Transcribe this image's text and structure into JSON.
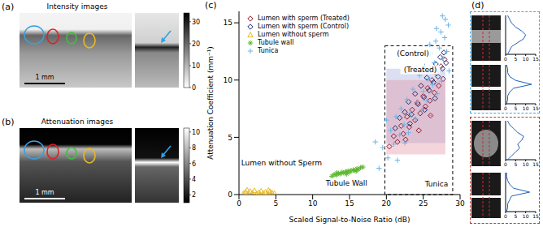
{
  "panel_labels": [
    "(a)",
    "(b)",
    "(c)",
    "(d)"
  ],
  "panel_a": {
    "title": "Intensity images",
    "scale_bar": "1 mm",
    "colorbar": {
      "range": [
        0,
        34
      ],
      "ticks": [
        0,
        10,
        20,
        30
      ]
    }
  },
  "panel_b": {
    "title": "Attenuation images",
    "scale_bar": "1 mm",
    "colorbar": {
      "range": [
        1,
        10.5
      ],
      "ticks": [
        2,
        4,
        6,
        8,
        10
      ]
    }
  },
  "chart_data": [
    {
      "type": "scatter",
      "x_label": "Scaled Signal-to-Noise Ratio (dB)",
      "y_label": "Attenuation Coefficient (mm⁻¹)",
      "xlim": [
        0,
        30
      ],
      "xticks": [
        0,
        5,
        10,
        15,
        20,
        25,
        30
      ],
      "ylim": [
        0,
        16
      ],
      "yticks": [
        0,
        5,
        10,
        15
      ],
      "legend": "upper left",
      "regions": [
        {
          "x": [
            20,
            28
          ],
          "y": [
            4.5,
            11
          ],
          "color": "#9aa3d9"
        },
        {
          "x": [
            20,
            28
          ],
          "y": [
            3.5,
            10
          ],
          "color": "#e3889a"
        }
      ],
      "box": {
        "x": [
          19.8,
          29
        ],
        "y": [
          0,
          13
        ],
        "line_style": "dashed"
      },
      "annotations": [
        {
          "text": "(Control)",
          "x": 23.6,
          "y": 12.3
        },
        {
          "text": "(Treated)",
          "x": 24.6,
          "y": 10.9
        },
        {
          "text": "Lumen without Sperm",
          "x": 0.3,
          "y": 2.8
        },
        {
          "text": "Tubule Wall",
          "x": 14.6,
          "y": 1.0
        },
        {
          "text": "Tunica",
          "x": 26.8,
          "y": 0.9
        }
      ],
      "series": [
        {
          "name": "Lumen with sperm (Treated)",
          "color": "#8b1a2b",
          "marker": "diamond",
          "x": [
            20.4,
            21,
            21.5,
            22,
            22.3,
            22.8,
            23.1,
            23.5,
            23.9,
            24.2,
            24.6,
            25,
            25.3,
            25.6,
            25.9,
            26.2,
            26.5,
            26.8,
            27.1,
            27.4,
            27.7,
            27.9,
            24.4,
            26,
            22.6
          ],
          "values": [
            4.2,
            5.1,
            4.6,
            6.0,
            5.3,
            6.8,
            5.9,
            7.4,
            6.5,
            8.0,
            7.1,
            8.6,
            7.7,
            9.3,
            8.2,
            10.0,
            8.9,
            10.6,
            9.5,
            11.2,
            10.1,
            11.8,
            5.6,
            6.9,
            4.8
          ]
        },
        {
          "name": "Lumen with sperm (Control)",
          "color": "#1f2a6b",
          "marker": "diamond",
          "x": [
            21.2,
            21.8,
            22.5,
            23,
            23.4,
            23.9,
            24.3,
            24.7,
            25.1,
            25.5,
            25.8,
            26.1,
            26.4,
            26.7,
            27,
            27.3,
            27.6,
            27.8,
            23.2,
            25.2,
            26.6,
            28.1
          ],
          "values": [
            5.8,
            6.7,
            7.2,
            8.1,
            7.0,
            8.8,
            7.9,
            9.5,
            8.5,
            10.2,
            9.1,
            10.9,
            9.8,
            11.4,
            10.3,
            12.0,
            11.0,
            12.4,
            6.2,
            7.4,
            8.4,
            11.5
          ]
        },
        {
          "name": "Lumen without sperm",
          "color": "#e8b923",
          "marker": "triangle",
          "x": [
            0.6,
            0.9,
            1.2,
            1.5,
            1.8,
            2.1,
            2.4,
            2.7,
            3.0,
            3.3,
            3.6,
            3.9,
            4.2,
            4.5,
            4.8,
            1.1,
            2.9,
            4.0
          ],
          "values": [
            0.1,
            0.25,
            0.05,
            0.3,
            0.15,
            0.35,
            0.08,
            0.2,
            0.3,
            0.12,
            0.22,
            0.05,
            0.28,
            0.15,
            0.1,
            0.4,
            0.02,
            0.38
          ]
        },
        {
          "name": "Tubule wall",
          "color": "#5cb82e",
          "marker": "asterisk",
          "x": [
            12.6,
            12.9,
            13.2,
            13.5,
            13.7,
            14,
            14.2,
            14.5,
            14.8,
            15,
            15.2,
            15.5,
            15.7,
            16,
            16.2,
            16.5,
            16.8,
            13.3,
            14.6,
            15.9
          ],
          "values": [
            1.6,
            1.75,
            1.7,
            1.85,
            1.8,
            1.95,
            1.9,
            2.0,
            2.05,
            1.95,
            2.1,
            2.15,
            2.1,
            2.25,
            2.2,
            2.35,
            2.4,
            1.9,
            1.8,
            2.05
          ]
        },
        {
          "name": "Tunica",
          "color": "#6cb4e8",
          "marker": "plus",
          "x": [
            19,
            19.5,
            20.2,
            20.6,
            21,
            21.3,
            21.8,
            22,
            22.4,
            22.8,
            23,
            23.3,
            23.6,
            24,
            24.2,
            24.5,
            24.8,
            25,
            25.2,
            25.5,
            25.7,
            26,
            26.1,
            26.3,
            26.5,
            26.7,
            26.9,
            27,
            27.2,
            27.4,
            27.5,
            27.7,
            27.9,
            28,
            28.2,
            28.4,
            27.6,
            26.8,
            25.9,
            22.5,
            21.5,
            20,
            18.5,
            23.8,
            28.5
          ],
          "values": [
            2.3,
            4.1,
            3.2,
            5.6,
            4.4,
            6.8,
            5.2,
            7.5,
            6.1,
            8.3,
            5.4,
            7.1,
            9.2,
            6.6,
            8.1,
            10.4,
            7.4,
            9.0,
            11.2,
            8.2,
            10.1,
            12.3,
            6.9,
            9.6,
            11.5,
            13.4,
            8.8,
            10.7,
            12.8,
            14.2,
            9.9,
            11.9,
            13.7,
            15.3,
            12.5,
            14.8,
            15.6,
            14.5,
            13.1,
            4.5,
            3.0,
            6.5,
            4.6,
            11.0,
            10.8
          ]
        }
      ]
    },
    {
      "type": "line",
      "xlim": [
        0,
        15
      ],
      "xticks": [
        0,
        5,
        10,
        15
      ],
      "ylim": [
        0,
        10
      ],
      "tick_labels": "x",
      "color": "#1f5fbf",
      "x": [
        1,
        2,
        3,
        6,
        9,
        10,
        8,
        5,
        3,
        2,
        1
      ],
      "values": [
        0,
        1,
        2,
        3,
        4,
        5,
        6,
        7,
        8,
        9,
        10
      ]
    },
    {
      "type": "line",
      "xlim": [
        0,
        15
      ],
      "xticks": [
        0,
        5,
        10,
        15
      ],
      "ylim": [
        0,
        10
      ],
      "tick_labels": "x",
      "color": "#1f5fbf",
      "x": [
        0.5,
        1,
        1,
        2,
        4,
        13,
        5,
        2,
        1,
        1,
        0.5
      ],
      "values": [
        0,
        1,
        2,
        3,
        4,
        5,
        6,
        7,
        8,
        9,
        10
      ]
    },
    {
      "type": "line",
      "xlim": [
        0,
        15
      ],
      "xticks": [
        0,
        5,
        10,
        15
      ],
      "ylim": [
        0,
        10
      ],
      "tick_labels": "x",
      "color": "#1f5fbf",
      "x": [
        1,
        3,
        5,
        7,
        6,
        8,
        9,
        6,
        4,
        2,
        1
      ],
      "values": [
        0,
        1,
        2,
        3,
        4,
        5,
        6,
        7,
        8,
        9,
        10
      ]
    },
    {
      "type": "line",
      "xlim": [
        0,
        15
      ],
      "xticks": [
        0,
        5,
        10,
        15
      ],
      "ylim": [
        0,
        10
      ],
      "tick_labels": "x",
      "color": "#1f5fbf",
      "x": [
        0.5,
        1,
        1,
        2,
        3,
        12,
        4,
        2,
        1,
        0.5,
        0.5
      ],
      "values": [
        0,
        1,
        2,
        3,
        4,
        5,
        6,
        7,
        8,
        9,
        10
      ]
    }
  ]
}
